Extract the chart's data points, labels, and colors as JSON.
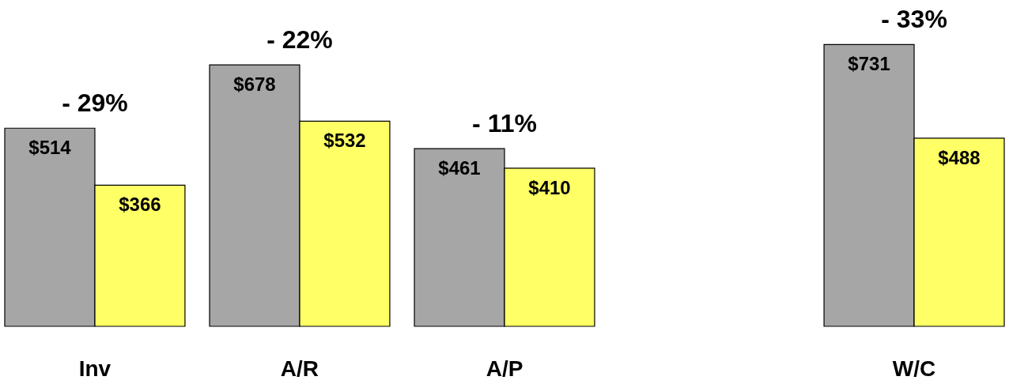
{
  "chart_data": {
    "type": "bar",
    "categories": [
      "Inv",
      "A/R",
      "A/P",
      null,
      "W/C"
    ],
    "series": [
      {
        "color": "#a6a6a6",
        "values": [
          514,
          678,
          461,
          null,
          731
        ],
        "value_labels": [
          "$514",
          "$678",
          "$461",
          null,
          "$731"
        ]
      },
      {
        "color": "#ffff66",
        "values": [
          366,
          532,
          410,
          null,
          488
        ],
        "value_labels": [
          "$366",
          "$532",
          "$410",
          null,
          "$488"
        ]
      }
    ],
    "annotations": [
      "- 29%",
      "- 22%",
      "- 11%",
      "- 33%"
    ]
  }
}
